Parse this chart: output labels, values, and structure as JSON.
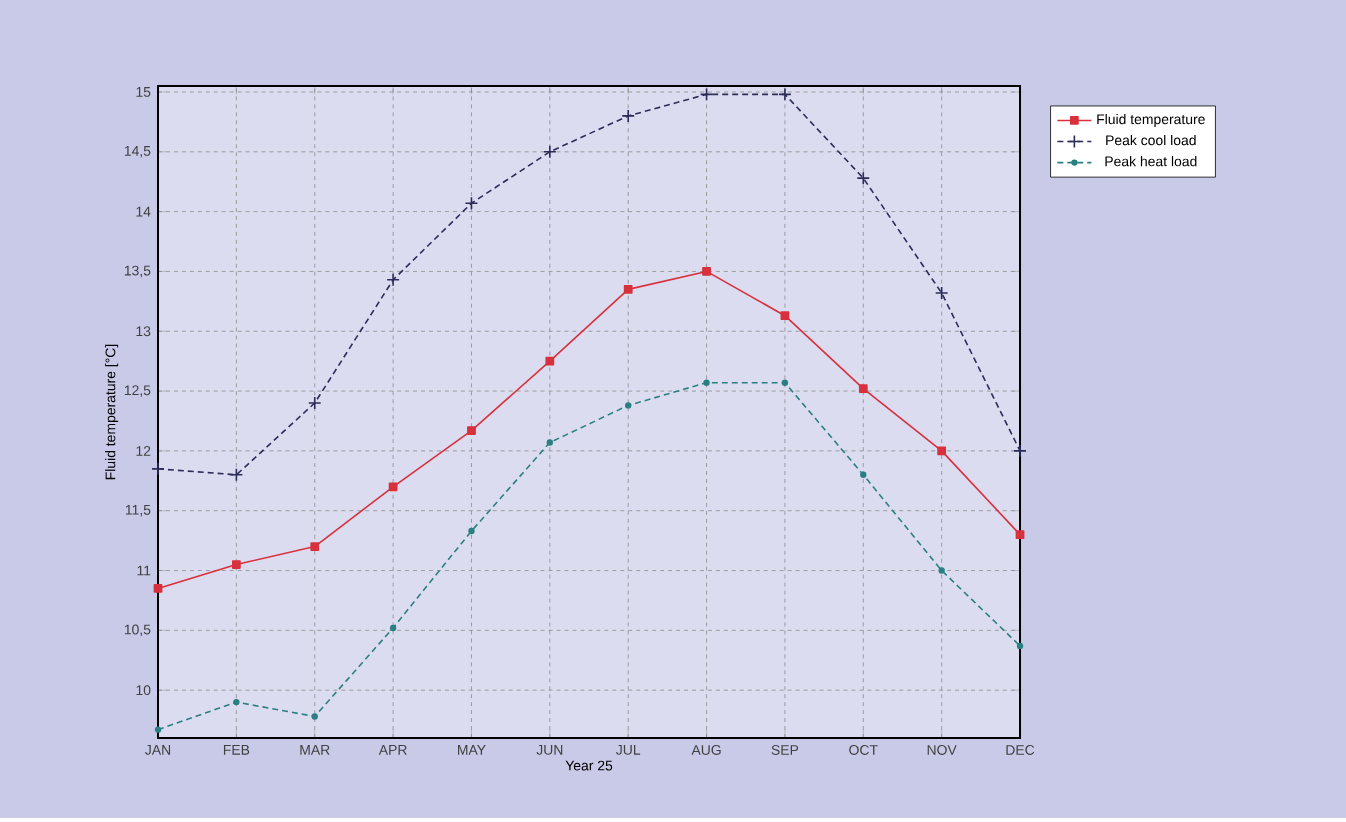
{
  "chart_data": {
    "type": "line",
    "xlabel": "Year 25",
    "ylabel": "Fluid temperature [°C]",
    "categories": [
      "JAN",
      "FEB",
      "MAR",
      "APR",
      "MAY",
      "JUN",
      "JUL",
      "AUG",
      "SEP",
      "OCT",
      "NOV",
      "DEC"
    ],
    "series": [
      {
        "name": "Fluid temperature",
        "color": "#d8303c",
        "marker": "square",
        "line_style": "solid",
        "values": [
          10.85,
          11.05,
          11.2,
          11.7,
          12.17,
          12.75,
          13.35,
          13.5,
          13.13,
          12.52,
          12.0,
          11.3
        ]
      },
      {
        "name": "Peak cool load",
        "color": "#2c2c58",
        "marker": "cross",
        "line_style": "dashed",
        "values": [
          11.85,
          11.8,
          12.4,
          13.43,
          14.07,
          14.5,
          14.8,
          14.98,
          14.98,
          14.28,
          13.32,
          12.0
        ]
      },
      {
        "name": "Peak heat load",
        "color": "#2a8080",
        "marker": "circle",
        "line_style": "dashed",
        "values": [
          9.67,
          9.9,
          9.78,
          10.52,
          11.33,
          12.07,
          12.38,
          12.57,
          12.57,
          11.8,
          11.0,
          10.37
        ]
      }
    ],
    "ylim": [
      9.6,
      15.05
    ],
    "yticks": [
      10,
      {
        "value": 10.5,
        "label": "10,5"
      },
      11,
      {
        "value": 11.5,
        "label": "11,5"
      },
      12,
      {
        "value": 12.5,
        "label": "12,5"
      },
      13,
      {
        "value": 13.5,
        "label": "13,5"
      },
      14,
      {
        "value": 14.5,
        "label": "14,5"
      },
      15
    ],
    "grid": true,
    "legend": "top right"
  }
}
